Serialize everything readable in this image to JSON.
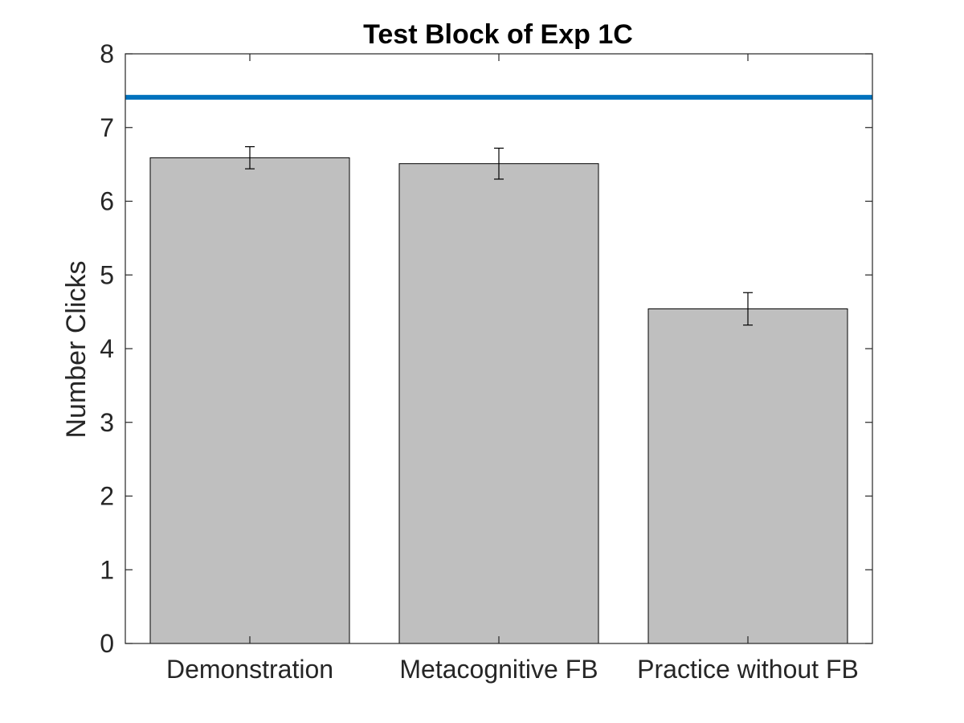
{
  "chart_data": {
    "type": "bar",
    "title": "Test Block of Exp 1C",
    "xlabel": "",
    "ylabel": "Number Clicks",
    "categories": [
      "Demonstration",
      "Metacognitive FB",
      "Practice without FB"
    ],
    "values": [
      6.59,
      6.51,
      4.54
    ],
    "error": [
      0.15,
      0.21,
      0.22
    ],
    "reference_line": 7.41,
    "ylim": [
      0,
      8
    ],
    "yticks": [
      "0",
      "1",
      "2",
      "3",
      "4",
      "5",
      "6",
      "7",
      "8"
    ],
    "grid": false,
    "legend": "none",
    "colors": {
      "bar_fill": "#bfbfbf",
      "bar_edge": "#000000",
      "reference_line": "#0072bd",
      "axis": "#262626"
    }
  }
}
